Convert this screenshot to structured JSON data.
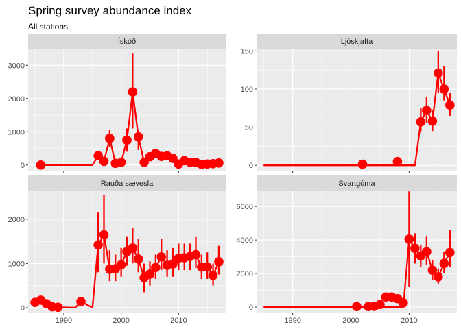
{
  "chart_data": {
    "type": "line",
    "title": "Spring survey abundance index",
    "subtitle": "All stations",
    "xlim": [
      1983.8,
      2018.2
    ],
    "x_ticks": [
      1990,
      2000,
      2010
    ],
    "grid": true,
    "colors": {
      "series": "#ff0000",
      "panel_bg": "#ebebeb",
      "strip_bg": "#d9d9d9",
      "grid": "#ffffff"
    },
    "panels": [
      {
        "name": "Ískóð",
        "ylim": [
          -170,
          3500
        ],
        "y_ticks": [
          0,
          1000,
          2000,
          3000
        ],
        "line": [
          [
            1986,
            0
          ],
          [
            1995,
            0
          ],
          [
            1996,
            280
          ],
          [
            1997,
            110
          ],
          [
            1998,
            800
          ],
          [
            1999,
            50
          ],
          [
            2000,
            80
          ],
          [
            2001,
            750
          ],
          [
            2002,
            2200
          ],
          [
            2003,
            850
          ],
          [
            2004,
            80
          ],
          [
            2005,
            250
          ],
          [
            2006,
            350
          ],
          [
            2007,
            260
          ],
          [
            2008,
            280
          ],
          [
            2009,
            200
          ],
          [
            2010,
            30
          ],
          [
            2011,
            130
          ],
          [
            2012,
            80
          ],
          [
            2013,
            80
          ],
          [
            2014,
            20
          ],
          [
            2015,
            30
          ],
          [
            2016,
            40
          ],
          [
            2017,
            60
          ]
        ],
        "points": [
          [
            1986,
            0
          ],
          [
            1996,
            280
          ],
          [
            1997,
            110
          ],
          [
            1998,
            800
          ],
          [
            1999,
            50
          ],
          [
            2000,
            80
          ],
          [
            2001,
            750
          ],
          [
            2002,
            2200
          ],
          [
            2003,
            850
          ],
          [
            2004,
            80
          ],
          [
            2005,
            250
          ],
          [
            2006,
            350
          ],
          [
            2007,
            260
          ],
          [
            2008,
            280
          ],
          [
            2009,
            200
          ],
          [
            2010,
            30
          ],
          [
            2011,
            130
          ],
          [
            2012,
            80
          ],
          [
            2013,
            80
          ],
          [
            2014,
            20
          ],
          [
            2015,
            30
          ],
          [
            2016,
            40
          ],
          [
            2017,
            60
          ]
        ],
        "error_bars": [
          [
            1996,
            180,
            400
          ],
          [
            1997,
            40,
            200
          ],
          [
            1998,
            550,
            1050
          ],
          [
            2001,
            400,
            1100
          ],
          [
            2002,
            1100,
            3350
          ],
          [
            2003,
            450,
            1050
          ]
        ]
      },
      {
        "name": "Ljóskjafta",
        "ylim": [
          -7,
          153
        ],
        "y_ticks": [
          0,
          50,
          100,
          150
        ],
        "line": [
          [
            1985,
            0
          ],
          [
            2011,
            0
          ],
          [
            2012,
            57
          ],
          [
            2013,
            72
          ],
          [
            2014,
            58
          ],
          [
            2015,
            121
          ],
          [
            2016,
            100
          ],
          [
            2017,
            79
          ]
        ],
        "points": [
          [
            2002,
            1.5
          ],
          [
            2008,
            5
          ],
          [
            2012,
            57
          ],
          [
            2013,
            72
          ],
          [
            2014,
            58
          ],
          [
            2015,
            121
          ],
          [
            2016,
            100
          ],
          [
            2017,
            79
          ]
        ],
        "error_bars": [
          [
            2012,
            45,
            75
          ],
          [
            2013,
            55,
            90
          ],
          [
            2014,
            45,
            72
          ],
          [
            2015,
            95,
            150
          ],
          [
            2016,
            85,
            130
          ],
          [
            2017,
            65,
            95
          ]
        ]
      },
      {
        "name": "Rauða sævesla",
        "ylim": [
          -110,
          2650
        ],
        "y_ticks": [
          0,
          1000,
          2000
        ],
        "line": [
          [
            1985,
            120
          ],
          [
            1986,
            170
          ],
          [
            1987,
            90
          ],
          [
            1988,
            20
          ],
          [
            1989,
            10
          ],
          [
            1992,
            0
          ],
          [
            1993,
            140
          ],
          [
            1995,
            0
          ],
          [
            1996,
            1420
          ],
          [
            1997,
            1650
          ],
          [
            1998,
            870
          ],
          [
            1999,
            880
          ],
          [
            2000,
            970
          ],
          [
            2001,
            1270
          ],
          [
            2002,
            1350
          ],
          [
            2003,
            1100
          ],
          [
            2004,
            680
          ],
          [
            2005,
            760
          ],
          [
            2006,
            910
          ],
          [
            2007,
            1150
          ],
          [
            2008,
            960
          ],
          [
            2009,
            990
          ],
          [
            2010,
            1120
          ],
          [
            2011,
            1130
          ],
          [
            2012,
            1160
          ],
          [
            2013,
            1200
          ],
          [
            2014,
            920
          ],
          [
            2015,
            920
          ],
          [
            2016,
            730
          ],
          [
            2017,
            1040
          ]
        ],
        "points": [
          [
            1985,
            120
          ],
          [
            1986,
            170
          ],
          [
            1987,
            90
          ],
          [
            1988,
            20
          ],
          [
            1989,
            10
          ],
          [
            1993,
            140
          ],
          [
            1996,
            1420
          ],
          [
            1997,
            1650
          ],
          [
            1998,
            870
          ],
          [
            1999,
            880
          ],
          [
            2000,
            970
          ],
          [
            2001,
            1270
          ],
          [
            2002,
            1350
          ],
          [
            2003,
            1100
          ],
          [
            2004,
            680
          ],
          [
            2005,
            760
          ],
          [
            2006,
            910
          ],
          [
            2007,
            1150
          ],
          [
            2008,
            960
          ],
          [
            2009,
            990
          ],
          [
            2010,
            1120
          ],
          [
            2011,
            1130
          ],
          [
            2012,
            1160
          ],
          [
            2013,
            1200
          ],
          [
            2014,
            920
          ],
          [
            2015,
            920
          ],
          [
            2016,
            730
          ],
          [
            2017,
            1040
          ]
        ],
        "error_bars": [
          [
            1996,
            800,
            2150
          ],
          [
            1997,
            1000,
            2550
          ],
          [
            1998,
            600,
            1300
          ],
          [
            1999,
            600,
            1200
          ],
          [
            2000,
            700,
            1350
          ],
          [
            2001,
            950,
            1600
          ],
          [
            2002,
            1000,
            1800
          ],
          [
            2003,
            800,
            1550
          ],
          [
            2004,
            350,
            1000
          ],
          [
            2005,
            500,
            1050
          ],
          [
            2006,
            650,
            1200
          ],
          [
            2007,
            850,
            1550
          ],
          [
            2008,
            700,
            1300
          ],
          [
            2009,
            700,
            1350
          ],
          [
            2010,
            850,
            1450
          ],
          [
            2011,
            850,
            1450
          ],
          [
            2012,
            850,
            1450
          ],
          [
            2013,
            900,
            1600
          ],
          [
            2014,
            650,
            1200
          ],
          [
            2015,
            650,
            1250
          ],
          [
            2016,
            500,
            1000
          ],
          [
            2017,
            750,
            1400
          ]
        ]
      },
      {
        "name": "Svartgóma",
        "ylim": [
          -330,
          6950
        ],
        "y_ticks": [
          0,
          2000,
          4000,
          6000
        ],
        "line": [
          [
            1985,
            0
          ],
          [
            2009,
            0
          ],
          [
            2010,
            4050
          ],
          [
            2011,
            3500
          ],
          [
            2012,
            3050
          ],
          [
            2013,
            3300
          ],
          [
            2014,
            2200
          ],
          [
            2015,
            1800
          ],
          [
            2016,
            2600
          ],
          [
            2017,
            3250
          ]
        ],
        "points": [
          [
            2001,
            30
          ],
          [
            2003,
            30
          ],
          [
            2004,
            40
          ],
          [
            2005,
            150
          ],
          [
            2006,
            600
          ],
          [
            2007,
            600
          ],
          [
            2008,
            500
          ],
          [
            2009,
            250
          ],
          [
            2010,
            4050
          ],
          [
            2011,
            3500
          ],
          [
            2012,
            3050
          ],
          [
            2013,
            3300
          ],
          [
            2014,
            2200
          ],
          [
            2015,
            1800
          ],
          [
            2016,
            2600
          ],
          [
            2017,
            3250
          ]
        ],
        "error_bars": [
          [
            2010,
            1200,
            6900
          ],
          [
            2011,
            2600,
            4400
          ],
          [
            2012,
            2400,
            3700
          ],
          [
            2013,
            2500,
            4200
          ],
          [
            2014,
            1600,
            2800
          ],
          [
            2015,
            1400,
            2300
          ],
          [
            2016,
            2000,
            3300
          ],
          [
            2017,
            2400,
            4600
          ]
        ]
      }
    ]
  }
}
